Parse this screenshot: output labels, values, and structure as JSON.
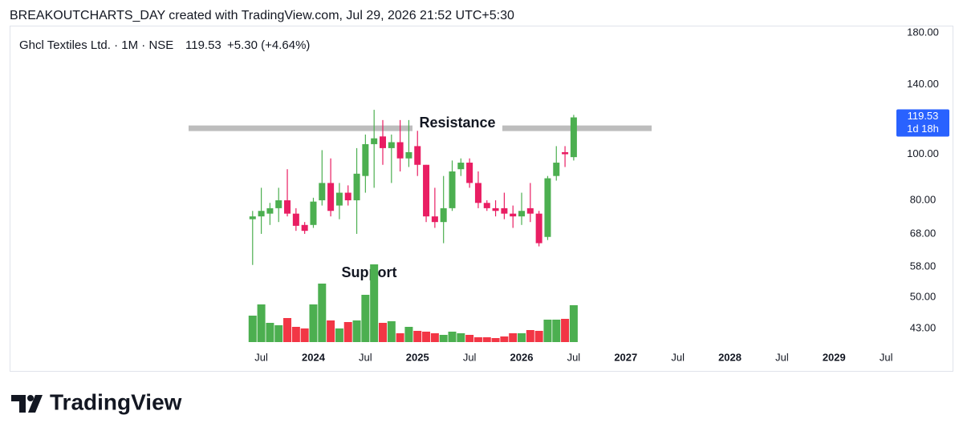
{
  "header": "BREAKOUTCHARTS_DAY created with TradingView.com, Jul 29, 2026 21:52 UTC+5:30",
  "branding": "TradingView",
  "chart_data": {
    "type": "candlestick",
    "title": "Ghcl Textiles Ltd. · 1M · NSE",
    "last_price": 119.53,
    "change": "+5.30 (+4.64%)",
    "countdown": "1d 18h",
    "log_scale": true,
    "up_color": "#4caf50",
    "down_color": "#e91e63",
    "volume_up_color": "#4caf50",
    "volume_down_color": "#f23645",
    "price_label_color": "#2962ff",
    "x": [
      "2023-06",
      "2023-07",
      "2023-08",
      "2023-09",
      "2023-10",
      "2023-11",
      "2023-12",
      "2024-01",
      "2024-02",
      "2024-03",
      "2024-04",
      "2024-05",
      "2024-06",
      "2024-07",
      "2024-08",
      "2024-09",
      "2024-10",
      "2024-11",
      "2024-12",
      "2025-01",
      "2025-02",
      "2025-03",
      "2025-04",
      "2025-05",
      "2025-06",
      "2025-07",
      "2025-08",
      "2025-09",
      "2025-10",
      "2025-11",
      "2025-12",
      "2026-01",
      "2026-02",
      "2026-03",
      "2026-04",
      "2026-05",
      "2026-06",
      "2026-07"
    ],
    "open": [
      73,
      74,
      75,
      77,
      80,
      75,
      71,
      71,
      80,
      87,
      78,
      83,
      80,
      90,
      105,
      109,
      103,
      106,
      98,
      104,
      95,
      74,
      72,
      77,
      93,
      96,
      87,
      79,
      77,
      77,
      75,
      74,
      77,
      75,
      67,
      90,
      101,
      98.6
    ],
    "high": [
      76,
      85,
      79,
      85,
      93,
      77,
      72,
      81,
      102,
      98,
      87,
      86,
      103,
      110,
      124,
      118,
      110,
      118,
      118,
      112,
      95,
      85,
      90,
      97,
      98,
      98,
      92,
      80,
      80,
      83,
      78,
      83,
      87,
      76,
      90,
      104,
      104,
      121
    ],
    "low": [
      58.5,
      68,
      71,
      72,
      74,
      69,
      68,
      70,
      78,
      74,
      73,
      78,
      68,
      83,
      85,
      95,
      87,
      92,
      94,
      90,
      72,
      70,
      65,
      76,
      90,
      85,
      77,
      76,
      74,
      73,
      70,
      71,
      72,
      64,
      66,
      88,
      94,
      97
    ],
    "close": [
      74,
      76,
      77,
      80,
      75,
      70.7,
      69,
      79.5,
      87,
      76,
      83,
      80,
      91,
      105,
      108,
      103,
      106,
      98,
      101,
      95,
      74,
      72,
      77,
      92,
      96,
      87,
      79,
      77,
      76,
      75,
      74,
      76,
      75,
      65,
      89,
      96,
      100,
      119.53
    ],
    "volume": [
      33,
      47,
      24,
      21,
      30,
      19,
      17,
      47,
      73,
      27,
      17,
      25,
      27,
      59,
      97,
      24,
      26,
      11,
      19,
      14,
      13,
      11,
      9,
      13,
      11,
      9,
      6,
      6,
      5,
      7,
      11,
      11,
      15,
      14,
      28,
      28,
      29,
      46
    ],
    "xlim": [
      "2021-02",
      "2029-08"
    ],
    "xticks": [
      {
        "value": "2023-07",
        "label": "Jul"
      },
      {
        "value": "2024-01",
        "label": "2024"
      },
      {
        "value": "2024-07",
        "label": "Jul"
      },
      {
        "value": "2025-01",
        "label": "2025"
      },
      {
        "value": "2025-07",
        "label": "Jul"
      },
      {
        "value": "2026-01",
        "label": "2026"
      },
      {
        "value": "2026-07",
        "label": "Jul"
      },
      {
        "value": "2027-01",
        "label": "2027"
      },
      {
        "value": "2027-07",
        "label": "Jul"
      },
      {
        "value": "2028-01",
        "label": "2028"
      },
      {
        "value": "2028-07",
        "label": "Jul"
      },
      {
        "value": "2029-01",
        "label": "2029"
      },
      {
        "value": "2029-07",
        "label": "Jul"
      }
    ],
    "ylim": [
      39.8,
      186.4
    ],
    "yticks": [
      {
        "value": 180,
        "label": "180.00"
      },
      {
        "value": 140,
        "label": "140.00"
      },
      {
        "value": 100,
        "label": "100.00"
      },
      {
        "value": 80,
        "label": "80.00"
      },
      {
        "value": 68,
        "label": "68.00"
      },
      {
        "value": 58,
        "label": "58.00"
      },
      {
        "value": 50,
        "label": "50.00"
      },
      {
        "value": 43,
        "label": "43.00"
      }
    ],
    "resistance": {
      "label": "Resistance",
      "value": 113.4
    },
    "support_label": "Support"
  }
}
